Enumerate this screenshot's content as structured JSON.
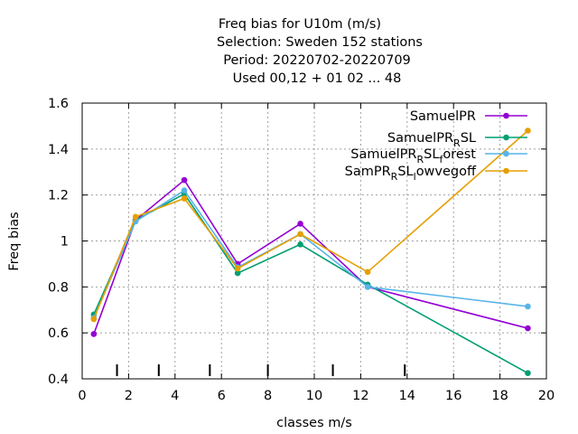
{
  "chart_data": {
    "type": "line",
    "title_lines": [
      "Freq bias  for U10m (m/s)",
      "Selection: Sweden    152 stations",
      "Period: 20220702-20220709",
      "Used  00,12  + 01 02 ... 48"
    ],
    "xlabel": "classes m/s",
    "ylabel": "Freq bias",
    "xlim": [
      0,
      20
    ],
    "ylim": [
      0.4,
      1.6
    ],
    "xticks": [
      0,
      2,
      4,
      6,
      8,
      10,
      12,
      14,
      16,
      18,
      20
    ],
    "yticks": [
      0.4,
      0.6,
      0.8,
      1,
      1.2,
      1.4,
      1.6
    ],
    "xtick_labels": [
      "0",
      "2",
      "4",
      "6",
      "8",
      "10",
      "12",
      "14",
      "16",
      "18",
      "20"
    ],
    "ytick_labels": [
      "0.4",
      "0.6",
      "0.8",
      "1",
      "1.2",
      "1.4",
      "1.6"
    ],
    "class_boundaries": [
      1.5,
      3.3,
      5.5,
      8.0,
      10.8,
      13.9
    ],
    "grid": true,
    "legend_position": "top-right",
    "x": [
      0.5,
      2.3,
      4.4,
      6.7,
      9.4,
      12.3,
      19.2
    ],
    "series": [
      {
        "name_main": "SamuelPR",
        "name_sub": "",
        "name_tail": "",
        "color": "#9400d3",
        "values": [
          0.595,
          1.09,
          1.265,
          0.9,
          1.075,
          0.8,
          0.62
        ]
      },
      {
        "name_main": "SamuelPR",
        "name_sub": "R",
        "name_tail": "SL",
        "color": "#009e73",
        "values": [
          0.68,
          1.09,
          1.205,
          0.86,
          0.985,
          0.81,
          0.425
        ]
      },
      {
        "name_main": "SamuelPR",
        "name_sub": "R",
        "name_tail": "SL",
        "name_tail_sub": "f",
        "name_tail_end": "orest",
        "color": "#56b4e9",
        "values": [
          0.665,
          1.085,
          1.22,
          0.885,
          1.03,
          0.8,
          0.715
        ]
      },
      {
        "name_main": "SamPR",
        "name_sub": "R",
        "name_tail": "SL",
        "name_tail_sub": "l",
        "name_tail_end": "owvegoff",
        "color": "#e69f00",
        "values": [
          0.66,
          1.105,
          1.185,
          0.88,
          1.03,
          0.865,
          1.48
        ]
      }
    ]
  }
}
